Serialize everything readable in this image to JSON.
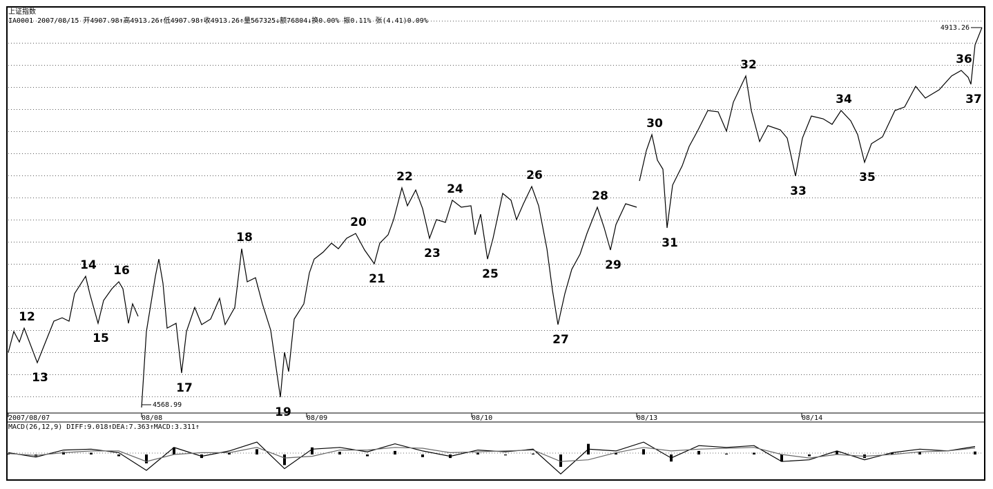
{
  "header": {
    "title": "上证指数",
    "info": "IA0001 2007/08/15 开4907.98↑高4913.26↑低4907.98↑收4913.26↑量567325↓额76804↓换0.00% 振0.11% 张(4.41)0.09%"
  },
  "chart_data": [
    {
      "type": "line",
      "color": "#000000",
      "x": [
        0,
        8,
        16,
        23,
        42,
        50,
        66,
        78,
        88,
        96,
        112,
        118,
        130,
        138,
        150,
        160,
        166,
        174,
        180,
        188,
        190,
        193,
        200,
        213,
        218,
        224,
        230,
        243,
        251,
        258,
        270,
        280,
        293,
        306,
        314,
        328,
        338,
        346,
        358,
        368,
        380,
        394,
        400,
        406,
        414,
        428,
        436,
        443,
        456,
        468,
        478,
        490,
        503,
        516,
        530,
        538,
        550,
        558,
        570,
        578,
        590,
        600,
        610,
        620,
        633,
        643,
        656,
        670,
        676,
        684,
        694,
        702,
        716,
        728,
        736,
        746,
        758,
        768,
        780,
        788,
        796,
        806,
        816,
        828,
        838,
        853,
        863,
        872,
        880,
        894,
        910,
        911,
        914,
        924,
        932,
        940,
        948,
        954,
        962,
        976,
        986,
        998,
        1013,
        1028,
        1040,
        1050,
        1068,
        1076,
        1088,
        1100,
        1118,
        1128,
        1140,
        1150,
        1163,
        1180,
        1193,
        1206,
        1220,
        1230,
        1240,
        1250,
        1266,
        1284,
        1298,
        1314,
        1328,
        1348,
        1366,
        1380,
        1390,
        1394,
        1400,
        1410
      ],
      "values": [
        4619.0,
        4637.8,
        4628.4,
        4640.9,
        4609.6,
        4622.2,
        4647.2,
        4650.3,
        4647.2,
        4672.2,
        4687.9,
        4672.2,
        4645.3,
        4666.0,
        4676.6,
        4682.9,
        4676.6,
        4645.3,
        4662.9,
        4651.6,
        null,
        4568.99,
        4637.8,
        4687.9,
        4703.5,
        4681.6,
        4640.9,
        4645.3,
        4600.3,
        4637.8,
        4659.7,
        4644.1,
        4649.1,
        4667.9,
        4644.1,
        4659.7,
        4712.9,
        4682.9,
        4686.6,
        4662.9,
        4639.1,
        4578.3,
        4619.0,
        4601.5,
        4649.1,
        4662.9,
        4691.0,
        4703.5,
        4709.8,
        4717.9,
        4712.9,
        4722.3,
        4726.7,
        4711.7,
        4699.2,
        4717.9,
        4725.5,
        4739.2,
        4768.0,
        4751.8,
        4766.1,
        4749.2,
        4722.3,
        4739.2,
        4736.7,
        4756.8,
        4750.5,
        4751.8,
        4725.5,
        4744.2,
        4703.5,
        4722.3,
        4763.0,
        4756.8,
        4739.2,
        4753.6,
        4769.3,
        4751.8,
        4712.9,
        4675.4,
        4644.1,
        4672.2,
        4694.2,
        4707.9,
        4726.7,
        4750.5,
        4731.7,
        4711.7,
        4734.8,
        4753.6,
        4750.5,
        null,
        4774.3,
        4801.8,
        4816.2,
        4793.1,
        4784.9,
        4731.7,
        4770.5,
        4788.1,
        4805.6,
        4819.4,
        4838.1,
        4836.9,
        4819.4,
        4845.7,
        4869.4,
        4838.1,
        4810.0,
        4824.4,
        4820.6,
        4813.1,
        4778.7,
        4813.1,
        4833.1,
        4830.6,
        4825.6,
        4838.1,
        4828.7,
        4816.2,
        4791.2,
        4808.1,
        4814.3,
        4838.1,
        4841.3,
        4860.0,
        4849.4,
        4856.9,
        4869.4,
        4874.4,
        4868.2,
        4861.9,
        4897.6,
        4913.26
      ],
      "xlim": [
        0,
        1412
      ],
      "ylim": [
        4564.6,
        4929.5
      ],
      "xticks": [
        {
          "value": 0,
          "label": "2007/08/07"
        },
        {
          "value": 193,
          "label": "08/08"
        },
        {
          "value": 432,
          "label": "08/09"
        },
        {
          "value": 671,
          "label": "08/10"
        },
        {
          "value": 910,
          "label": "08/13"
        },
        {
          "value": 1149,
          "label": "08/14"
        }
      ],
      "annotations": [
        {
          "x": 23,
          "text": "12"
        },
        {
          "x": 42,
          "text": "13"
        },
        {
          "x": 112,
          "text": "14"
        },
        {
          "x": 130,
          "text": "15"
        },
        {
          "x": 160,
          "text": "16"
        },
        {
          "x": 251,
          "text": "17"
        },
        {
          "x": 338,
          "text": "18"
        },
        {
          "x": 394,
          "text": "19"
        },
        {
          "x": 503,
          "text": "20"
        },
        {
          "x": 530,
          "text": "21"
        },
        {
          "x": 570,
          "text": "22"
        },
        {
          "x": 610,
          "text": "23"
        },
        {
          "x": 643,
          "text": "24"
        },
        {
          "x": 694,
          "text": "25"
        },
        {
          "x": 758,
          "text": "26"
        },
        {
          "x": 796,
          "text": "27"
        },
        {
          "x": 853,
          "text": "28"
        },
        {
          "x": 872,
          "text": "29"
        },
        {
          "x": 932,
          "text": "30"
        },
        {
          "x": 954,
          "text": "31"
        },
        {
          "x": 1068,
          "text": "32"
        },
        {
          "x": 1140,
          "text": "33"
        },
        {
          "x": 1206,
          "text": "34"
        },
        {
          "x": 1240,
          "text": "35"
        },
        {
          "x": 1380,
          "text": "36"
        },
        {
          "x": 1394,
          "text": "37"
        }
      ]
    },
    {
      "type": "macd",
      "title": "MACD(26,12,9) DIFF:9.018↑DEA:7.363↑MACD:3.311↑",
      "x": [
        0,
        40,
        80,
        120,
        160,
        200,
        240,
        280,
        320,
        360,
        400,
        440,
        480,
        520,
        560,
        600,
        640,
        680,
        720,
        760,
        800,
        840,
        880,
        920,
        960,
        1000,
        1040,
        1080,
        1120,
        1160,
        1200,
        1240,
        1280,
        1320,
        1360,
        1400
      ],
      "diff": [
        2,
        -3,
        5,
        6,
        2,
        -18,
        8,
        -2,
        4,
        14,
        -16,
        6,
        8,
        3,
        12,
        4,
        -2,
        5,
        3,
        6,
        -22,
        6,
        4,
        14,
        -4,
        10,
        8,
        10,
        -8,
        -6,
        4,
        -6,
        2,
        6,
        4,
        9.018
      ],
      "dea": [
        1,
        -1,
        2,
        4,
        4,
        -8,
        0,
        2,
        2,
        8,
        -4,
        -2,
        5,
        5,
        8,
        7,
        2,
        3,
        4,
        5,
        -8,
        -6,
        2,
        8,
        4,
        6,
        7,
        8,
        0,
        -4,
        0,
        -2,
        0,
        3,
        4,
        7.363
      ],
      "macd": [
        1,
        -2,
        3,
        2,
        -2,
        -10,
        8,
        -4,
        2,
        6,
        -12,
        8,
        3,
        -2,
        4,
        -3,
        -4,
        2,
        -1,
        1,
        -14,
        12,
        2,
        6,
        -8,
        4,
        1,
        2,
        -8,
        -2,
        4,
        -4,
        2,
        3,
        0,
        3.311
      ],
      "xlim": [
        0,
        1412
      ],
      "ylim": [
        -25,
        25
      ]
    }
  ]
}
